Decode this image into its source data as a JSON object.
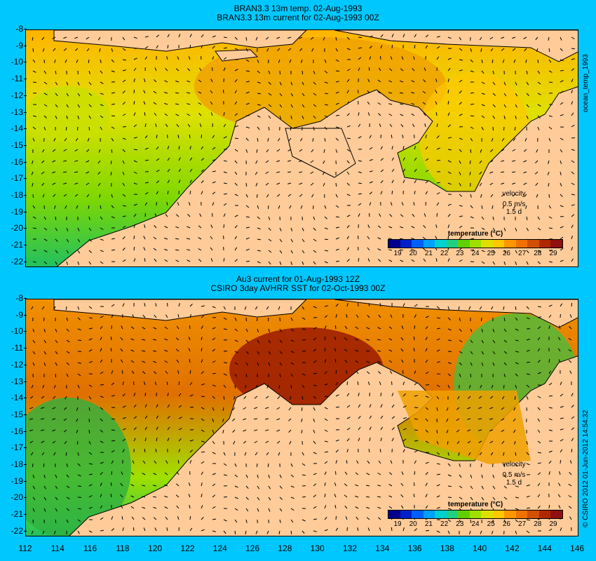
{
  "top": {
    "title1": "BRAN3.3 13m temp. 02-Aug-1993",
    "title2": "BRAN3.3 13m current for 02-Aug-1993 00Z",
    "side_label": "ocean_temp_1993"
  },
  "bottom": {
    "title1": "Au3 current for 01-Aug-1993 12Z",
    "title2": "CSIRO 3day AVHRR SST for 02-Oct-1993 00Z",
    "side_label": "© CSIRO 2012  01-Jun-2012 14:54:32"
  },
  "colorbar": {
    "title": "temperature (°C)",
    "ticks": [
      "19",
      "20",
      "21",
      "22",
      "23",
      "24",
      "25",
      "26",
      "27",
      "28",
      "29"
    ],
    "colors": [
      "#00008c",
      "#0020c8",
      "#0060ff",
      "#00a0ff",
      "#00d0d0",
      "#20d080",
      "#60d000",
      "#a0e000",
      "#e0e000",
      "#ffc800",
      "#ff9600",
      "#f07000",
      "#d05000",
      "#b02800",
      "#901010"
    ]
  },
  "velocity": {
    "label": "velocity",
    "speed": "0.5 m/s",
    "time": "1.5 d"
  },
  "y_ticks": [
    "-8",
    "-9",
    "-10",
    "-11",
    "-12",
    "-13",
    "-14",
    "-15",
    "-16",
    "-17",
    "-18",
    "-19",
    "-20",
    "-21",
    "-22"
  ],
  "x_ticks": [
    "112",
    "114",
    "116",
    "118",
    "120",
    "122",
    "124",
    "126",
    "128",
    "130",
    "132",
    "134",
    "136",
    "138",
    "140",
    "142",
    "144",
    "146"
  ],
  "colors": {
    "land": "#ffcc99",
    "background": "#00c8ff",
    "coast": "#60e0d0"
  }
}
